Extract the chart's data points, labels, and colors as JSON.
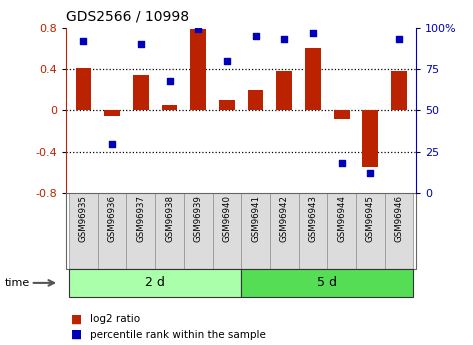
{
  "title": "GDS2566 / 10998",
  "samples": [
    "GSM96935",
    "GSM96936",
    "GSM96937",
    "GSM96938",
    "GSM96939",
    "GSM96940",
    "GSM96941",
    "GSM96942",
    "GSM96943",
    "GSM96944",
    "GSM96945",
    "GSM96946"
  ],
  "log2_ratio": [
    0.41,
    -0.05,
    0.34,
    0.05,
    0.79,
    0.1,
    0.2,
    0.38,
    0.6,
    -0.08,
    -0.55,
    0.38
  ],
  "percentile_rank": [
    92,
    30,
    90,
    68,
    99,
    80,
    95,
    93,
    97,
    18,
    12,
    93
  ],
  "group_boundary": 6,
  "group_labels": [
    "2 d",
    "5 d"
  ],
  "group_colors": [
    "#AAFFAA",
    "#55DD55"
  ],
  "bar_color": "#BB2200",
  "dot_color": "#0000BB",
  "ylim_left": [
    -0.8,
    0.8
  ],
  "yticks_left": [
    -0.8,
    -0.4,
    0.0,
    0.4,
    0.8
  ],
  "yticks_right": [
    0,
    25,
    50,
    75,
    100
  ],
  "hlines": [
    -0.4,
    0.0,
    0.4
  ],
  "time_label": "time",
  "legend_labels": [
    "log2 ratio",
    "percentile rank within the sample"
  ],
  "box_color": "#DCDCDC",
  "box_edge": "#999999",
  "fig_width": 4.73,
  "fig_height": 3.45,
  "dpi": 100
}
